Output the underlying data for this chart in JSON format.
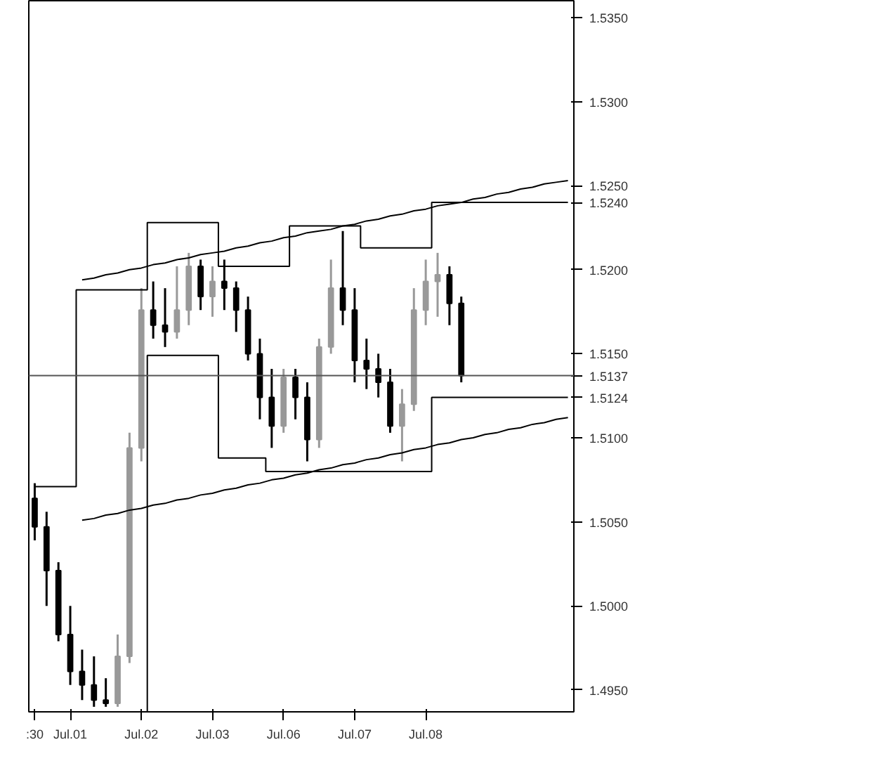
{
  "chart_data": {
    "type": "candlestick",
    "ylim": [
      1.4937,
      1.536
    ],
    "categories": [
      ":30",
      null,
      null,
      "Jul.01",
      null,
      null,
      null,
      null,
      null,
      "Jul.02",
      null,
      null,
      null,
      null,
      null,
      "Jul.03",
      null,
      null,
      null,
      null,
      null,
      "Jul.06",
      null,
      null,
      null,
      null,
      null,
      "Jul.07",
      null,
      null,
      null,
      null,
      null,
      "Jul.08",
      null,
      null,
      null,
      null,
      null,
      null,
      null,
      null,
      null,
      null,
      null,
      null
    ],
    "yticks": [
      {
        "value": 1.495,
        "label": "1.4950"
      },
      {
        "value": 1.5,
        "label": "1.5000"
      },
      {
        "value": 1.505,
        "label": "1.5050"
      },
      {
        "value": 1.51,
        "label": "1.5100"
      },
      {
        "value": 1.5124,
        "label": "1.5124"
      },
      {
        "value": 1.515,
        "label": "1.5150"
      },
      {
        "value": 1.52,
        "label": "1.5200"
      },
      {
        "value": 1.524,
        "label": "1.5240"
      },
      {
        "value": 1.525,
        "label": "1.5250"
      },
      {
        "value": 1.53,
        "label": "1.5300"
      },
      {
        "value": 1.535,
        "label": "1.5350"
      }
    ],
    "grid": false,
    "series": [
      {
        "ohlc": [
          [
            1.5064,
            1.5073,
            1.5039,
            1.5047
          ],
          [
            1.5047,
            1.5056,
            1.5,
            1.5021
          ],
          [
            1.5021,
            1.5026,
            1.4979,
            1.4983
          ],
          [
            1.4983,
            1.5,
            1.4953,
            1.4961
          ],
          [
            1.4961,
            1.4974,
            1.4944,
            1.4953
          ],
          [
            1.4953,
            1.497,
            1.494,
            1.4944
          ],
          [
            1.4944,
            1.4957,
            1.494,
            1.4942
          ],
          [
            1.4942,
            1.4983,
            1.494,
            1.497
          ],
          [
            1.497,
            1.5103,
            1.4966,
            1.5094
          ],
          [
            1.5094,
            1.5189,
            1.5086,
            1.5176
          ],
          [
            1.5176,
            1.5193,
            1.5159,
            1.5167
          ],
          [
            1.5167,
            1.5189,
            1.5154,
            1.5163
          ],
          [
            1.5163,
            1.5202,
            1.5159,
            1.5176
          ],
          [
            1.5176,
            1.521,
            1.5167,
            1.5202
          ],
          [
            1.5202,
            1.5206,
            1.5176,
            1.5184
          ],
          [
            1.5184,
            1.5202,
            1.5172,
            1.5193
          ],
          [
            1.5193,
            1.5206,
            1.5176,
            1.5189
          ],
          [
            1.5189,
            1.5193,
            1.5163,
            1.5176
          ],
          [
            1.5176,
            1.5184,
            1.5146,
            1.515
          ],
          [
            1.515,
            1.5159,
            1.5111,
            1.5124
          ],
          [
            1.5124,
            1.5141,
            1.5094,
            1.5107
          ],
          [
            1.5107,
            1.5141,
            1.5103,
            1.5136
          ],
          [
            1.5136,
            1.5141,
            1.5111,
            1.5124
          ],
          [
            1.5124,
            1.5133,
            1.5086,
            1.5099
          ],
          [
            1.5099,
            1.5159,
            1.5094,
            1.5154
          ],
          [
            1.5154,
            1.5206,
            1.515,
            1.5189
          ],
          [
            1.5189,
            1.5223,
            1.5167,
            1.5176
          ],
          [
            1.5176,
            1.5189,
            1.5133,
            1.5146
          ],
          [
            1.5146,
            1.5159,
            1.5129,
            1.5141
          ],
          [
            1.5141,
            1.515,
            1.5124,
            1.5133
          ],
          [
            1.5133,
            1.5141,
            1.5103,
            1.5107
          ],
          [
            1.5107,
            1.5129,
            1.5086,
            1.512
          ],
          [
            1.512,
            1.5189,
            1.5116,
            1.5176
          ],
          [
            1.5176,
            1.5206,
            1.5167,
            1.5193
          ],
          [
            1.5193,
            1.521,
            1.5172,
            1.5197
          ],
          [
            1.5197,
            1.5202,
            1.5167,
            1.518
          ],
          [
            1.518,
            1.5184,
            1.5133,
            1.5137
          ],
          null,
          null,
          null,
          null,
          null,
          null,
          null,
          null,
          null
        ],
        "colors": [
          "#000000",
          "#000000",
          "#000000",
          "#000000",
          "#000000",
          "#000000",
          "#000000",
          "#999999",
          "#999999",
          "#999999",
          "#000000",
          "#000000",
          "#999999",
          "#999999",
          "#000000",
          "#999999",
          "#000000",
          "#000000",
          "#000000",
          "#000000",
          "#000000",
          "#999999",
          "#000000",
          "#000000",
          "#999999",
          "#999999",
          "#000000",
          "#000000",
          "#000000",
          "#000000",
          "#000000",
          "#999999",
          "#999999",
          "#999999",
          "#999999",
          "#000000",
          "#000000",
          "#000000",
          "#000000",
          "#000000",
          "#000000",
          "#000000",
          "#000000",
          "#000000",
          "#000000",
          "#000000"
        ]
      },
      {
        "type": "step",
        "color": "#000000",
        "values": [
          1.5071,
          1.5071,
          1.5071,
          1.5071,
          1.5188,
          1.5188,
          1.5188,
          1.5188,
          1.5188,
          1.5188,
          1.5228,
          1.5228,
          1.5228,
          1.5228,
          1.5228,
          1.5228,
          1.5202,
          1.5202,
          1.5202,
          1.5202,
          1.5202,
          1.5202,
          1.5226,
          1.5226,
          1.5226,
          1.5226,
          1.5226,
          1.5226,
          1.5213,
          1.5213,
          1.5213,
          1.5213,
          1.5213,
          1.5213,
          1.524,
          1.524,
          1.524,
          1.524,
          1.524,
          1.524,
          1.524,
          1.524,
          1.524,
          1.524,
          1.524,
          1.524
        ]
      },
      {
        "type": "step",
        "color": "#000000",
        "values": [
          null,
          null,
          null,
          null,
          null,
          null,
          null,
          null,
          null,
          1.4937,
          1.5149,
          1.5149,
          1.5149,
          1.5149,
          1.5149,
          1.5149,
          1.5088,
          1.5088,
          1.5088,
          1.5088,
          1.508,
          1.508,
          1.508,
          1.508,
          1.508,
          1.508,
          1.508,
          1.508,
          1.508,
          1.508,
          1.508,
          1.508,
          1.508,
          1.508,
          1.5124,
          1.5124,
          1.5124,
          1.5124,
          1.5124,
          1.5124,
          1.5124,
          1.5124,
          1.5124,
          1.5124,
          1.5124,
          1.5124
        ]
      },
      {
        "type": "line",
        "color": "#000000",
        "values": [
          null,
          null,
          null,
          null,
          1.5194,
          1.5195,
          1.5197,
          1.5198,
          1.52,
          1.5201,
          1.5203,
          1.5204,
          1.5206,
          1.5207,
          1.5209,
          1.521,
          1.5211,
          1.5213,
          1.5214,
          1.5216,
          1.5217,
          1.5219,
          1.522,
          1.5222,
          1.5223,
          1.5224,
          1.5226,
          1.5227,
          1.5229,
          1.523,
          1.5232,
          1.5233,
          1.5235,
          1.5236,
          1.5238,
          1.5239,
          1.524,
          1.5242,
          1.5243,
          1.5245,
          1.5246,
          1.5248,
          1.5249,
          1.5251,
          1.5252,
          1.5253
        ]
      },
      {
        "type": "line",
        "color": "#000000",
        "values": [
          null,
          null,
          null,
          null,
          1.5051,
          1.5052,
          1.5054,
          1.5055,
          1.5057,
          1.5058,
          1.506,
          1.5061,
          1.5063,
          1.5064,
          1.5066,
          1.5067,
          1.5069,
          1.507,
          1.5072,
          1.5073,
          1.5075,
          1.5076,
          1.5078,
          1.5079,
          1.5081,
          1.5082,
          1.5084,
          1.5085,
          1.5087,
          1.5088,
          1.509,
          1.5091,
          1.5093,
          1.5094,
          1.5096,
          1.5097,
          1.5099,
          1.51,
          1.5102,
          1.5103,
          1.5105,
          1.5106,
          1.5108,
          1.5109,
          1.5111,
          1.5112
        ]
      }
    ],
    "ref_lines": [
      {
        "axis": "y",
        "value": 1.5137,
        "label": "1.5137",
        "color": "#555555"
      }
    ]
  }
}
